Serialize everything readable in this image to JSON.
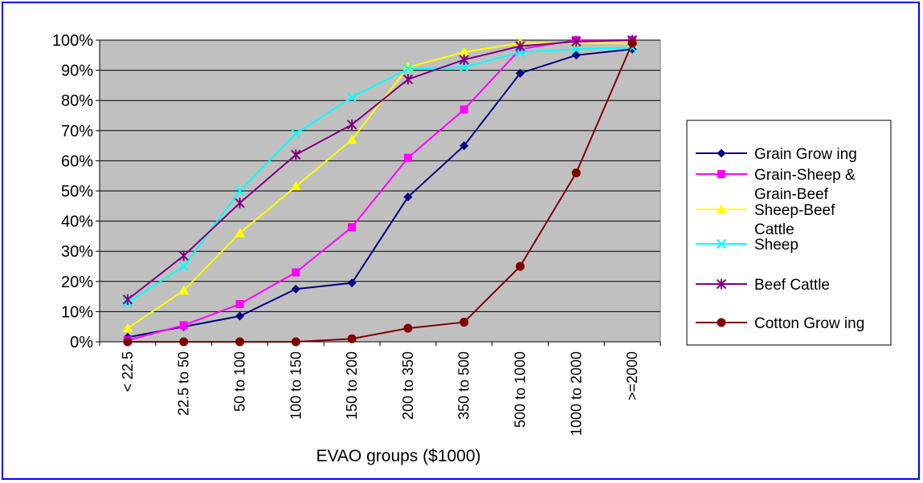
{
  "chart_data": {
    "type": "line",
    "title": "",
    "xlabel": "EVAO groups ($1000)",
    "ylabel": "",
    "ylim": [
      0,
      100
    ],
    "yticks": [
      "0%",
      "10%",
      "20%",
      "30%",
      "40%",
      "50%",
      "60%",
      "70%",
      "80%",
      "90%",
      "100%"
    ],
    "categories": [
      "< 22.5",
      "22.5 to 50",
      "50 to 100",
      "100 to 150",
      "150 to 200",
      "200 to 350",
      "350 to 500",
      "500 to 1000",
      "1000 to 2000",
      ">=2000"
    ],
    "grid": true,
    "plot_background": "#c0c0c0",
    "legend_position": "right",
    "series": [
      {
        "name": "Grain Grow ing",
        "color": "#000080",
        "marker": "diamond",
        "values": [
          1.5,
          5,
          8.5,
          17.5,
          19.5,
          48,
          65,
          89,
          95,
          97
        ]
      },
      {
        "name": "Grain-Sheep & Grain-Beef",
        "color": "#ff00ff",
        "marker": "square",
        "values": [
          0.5,
          5.5,
          12.5,
          23,
          38,
          61,
          77,
          97,
          100,
          100
        ]
      },
      {
        "name": "Sheep-Beef Cattle",
        "color": "#ffff00",
        "marker": "triangle",
        "values": [
          4.5,
          17,
          36,
          51.5,
          67,
          91,
          96,
          99,
          99,
          99
        ]
      },
      {
        "name": "Sheep",
        "color": "#00ffff",
        "marker": "x",
        "values": [
          13,
          25,
          50,
          69,
          81,
          90.5,
          91,
          96,
          97,
          97.5
        ]
      },
      {
        "name": "Beef Cattle",
        "color": "#800080",
        "marker": "star",
        "values": [
          14,
          28.5,
          46,
          62,
          72,
          87,
          93.5,
          98,
          99.5,
          100
        ]
      },
      {
        "name": "Cotton Grow ing",
        "color": "#800000",
        "marker": "circle",
        "values": [
          0,
          0,
          0,
          0,
          1,
          4.5,
          6.5,
          25,
          56,
          99
        ]
      }
    ],
    "legend_lines": [
      [
        "Grain Grow ing"
      ],
      [
        "Grain-Sheep &",
        "Grain-Beef"
      ],
      [
        "Sheep-Beef",
        "Cattle"
      ],
      [
        "Sheep"
      ],
      [
        "Beef Cattle"
      ],
      [
        "Cotton Grow ing"
      ]
    ]
  }
}
